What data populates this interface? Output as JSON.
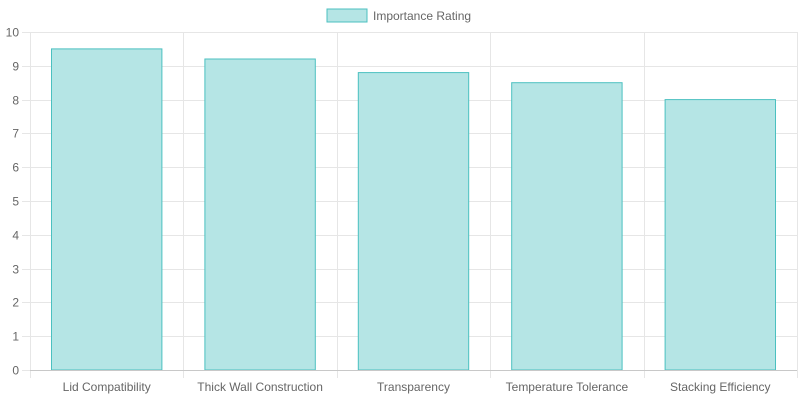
{
  "chart_data": {
    "type": "bar",
    "categories": [
      "Lid Compatibility",
      "Thick Wall Construction",
      "Transparency",
      "Temperature Tolerance",
      "Stacking Efficiency"
    ],
    "series": [
      {
        "name": "Importance Rating",
        "values": [
          9.5,
          9.2,
          8.8,
          8.5,
          8.0
        ]
      }
    ],
    "ylim": [
      0,
      10
    ],
    "yticks": [
      0,
      1,
      2,
      3,
      4,
      5,
      6,
      7,
      8,
      9,
      10
    ],
    "grid": true,
    "legend": "top-center",
    "colors": {
      "bar_fill": "#b5e5e5",
      "bar_border": "#4bc0c0",
      "grid": "#e6e6e6",
      "axis": "#c8c8c8",
      "tick_text": "#666666"
    }
  }
}
